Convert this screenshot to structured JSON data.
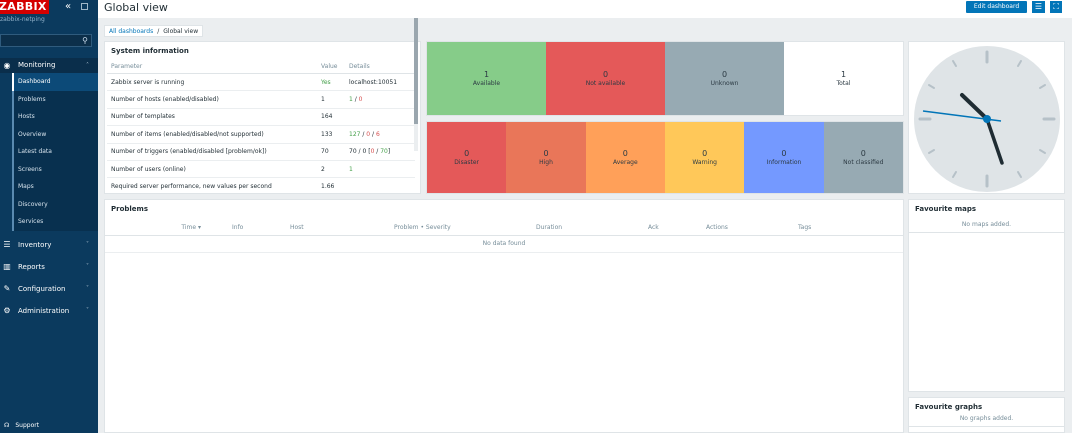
{
  "sidebar": {
    "logo": "ZABBIX",
    "server_name": "zabbix-netping",
    "sections": [
      {
        "label": "Monitoring",
        "icon": "eye-icon"
      },
      {
        "label": "Inventory",
        "icon": "list-icon"
      },
      {
        "label": "Reports",
        "icon": "bar-chart-icon"
      },
      {
        "label": "Configuration",
        "icon": "wrench-icon"
      },
      {
        "label": "Administration",
        "icon": "gear-icon"
      }
    ],
    "monitoring_items": [
      "Dashboard",
      "Problems",
      "Hosts",
      "Overview",
      "Latest data",
      "Screens",
      "Maps",
      "Discovery",
      "Services"
    ],
    "support": "Support"
  },
  "header": {
    "title": "Global view",
    "edit_button": "Edit dashboard"
  },
  "breadcrumbs": {
    "all": "All dashboards",
    "current": "Global view"
  },
  "system_info": {
    "title": "System information",
    "columns": [
      "Parameter",
      "Value",
      "Details"
    ],
    "rows": [
      {
        "param": "Zabbix server is running",
        "value": "Yes",
        "details": "localhost:10051"
      },
      {
        "param": "Number of hosts (enabled/disabled)",
        "value": "1",
        "d1": "1",
        "d2": "0"
      },
      {
        "param": "Number of templates",
        "value": "164",
        "details": ""
      },
      {
        "param": "Number of items (enabled/disabled/not supported)",
        "value": "133",
        "d1": "127",
        "d2": "0",
        "d3": "6"
      },
      {
        "param": "Number of triggers (enabled/disabled [problem/ok])",
        "value": "70",
        "d1": "70",
        "d2": "0",
        "d3": "0",
        "d4": "70"
      },
      {
        "param": "Number of users (online)",
        "value": "2",
        "d1": "1"
      },
      {
        "param": "Required server performance, new values per second",
        "value": "1.66",
        "details": ""
      }
    ]
  },
  "host_availability": [
    {
      "count": "1",
      "label": "Available",
      "color": "#86cc89"
    },
    {
      "count": "0",
      "label": "Not available",
      "color": "#e45959"
    },
    {
      "count": "0",
      "label": "Unknown",
      "color": "#97aab3"
    },
    {
      "count": "1",
      "label": "Total",
      "color": "#ffffff"
    }
  ],
  "problems_by_severity": [
    {
      "count": "0",
      "label": "Disaster",
      "color": "#e45959"
    },
    {
      "count": "0",
      "label": "High",
      "color": "#e97659"
    },
    {
      "count": "0",
      "label": "Average",
      "color": "#ffa059"
    },
    {
      "count": "0",
      "label": "Warning",
      "color": "#ffc859"
    },
    {
      "count": "0",
      "label": "Information",
      "color": "#7499ff"
    },
    {
      "count": "0",
      "label": "Not classified",
      "color": "#97aab3"
    }
  ],
  "problems": {
    "title": "Problems",
    "columns": [
      "Time ▾",
      "Info",
      "Host",
      "Problem • Severity",
      "Duration",
      "Ack",
      "Actions",
      "Tags"
    ],
    "empty": "No data found"
  },
  "favourite_maps": {
    "title": "Favourite maps",
    "empty": "No maps added."
  },
  "favourite_graphs": {
    "title": "Favourite graphs",
    "empty": "No graphs added."
  }
}
